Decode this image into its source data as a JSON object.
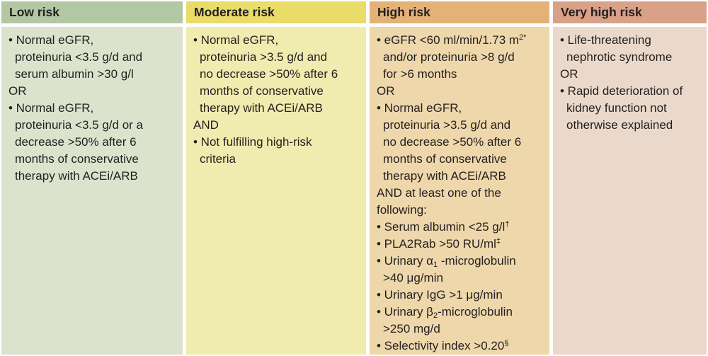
{
  "figure": {
    "background": "#ffffff",
    "text_color": "#231f20",
    "bullet_glyph": "•"
  },
  "table": {
    "columns": [
      {
        "id": "low-risk",
        "header": "Low risk",
        "colors": {
          "header_bg": "#b2c7a3",
          "body_bg": "#dbe3cd"
        },
        "items": [
          {
            "bullet": true,
            "text": "Normal eGFR,\nproteinuria <3.5 g/d and\nserum albumin >30 g/l"
          },
          {
            "bullet": false,
            "text": "OR"
          },
          {
            "bullet": true,
            "text": "Normal eGFR,\nproteinuria <3.5 g/d or a\ndecrease >50% after 6\nmonths of conservative\ntherapy with ACEi/ARB"
          }
        ]
      },
      {
        "id": "moderate-risk",
        "header": "Moderate risk",
        "colors": {
          "header_bg": "#e9dc69",
          "body_bg": "#f0ebae"
        },
        "items": [
          {
            "bullet": true,
            "text": "Normal eGFR,\nproteinuria >3.5 g/d and\nno decrease >50% after 6\nmonths of conservative\ntherapy with ACEi/ARB"
          },
          {
            "bullet": false,
            "text": "AND"
          },
          {
            "bullet": true,
            "text": "Not fulfilling high-risk\ncriteria"
          }
        ]
      },
      {
        "id": "high-risk",
        "header": "High risk",
        "colors": {
          "header_bg": "#e4b277",
          "body_bg": "#eed7ab"
        },
        "items": [
          {
            "bullet": true,
            "text": "eGFR <60 ml/min/1.73 m^{2*}\nand/or proteinuria >8 g/d\nfor >6 months"
          },
          {
            "bullet": false,
            "text": "OR"
          },
          {
            "bullet": true,
            "text": "Normal eGFR,\nproteinuria >3.5 g/d and\nno decrease >50% after 6\nmonths of conservative\ntherapy with ACEi/ARB"
          },
          {
            "bullet": false,
            "text": "AND at least one of the\nfollowing:"
          },
          {
            "bullet": true,
            "text": "Serum albumin <25 g/l^{†}"
          },
          {
            "bullet": true,
            "text": "PLA2Rab >50 RU/ml^{‡}"
          },
          {
            "bullet": true,
            "text": "Urinary α_{1} -microglobulin\n>40 μg/min"
          },
          {
            "bullet": true,
            "text": "Urinary IgG >1 μg/min"
          },
          {
            "bullet": true,
            "text": "Urinary β_{2}-microglobulin\n>250 mg/d"
          },
          {
            "bullet": true,
            "text": "Selectivity index >0.20^{§}"
          }
        ]
      },
      {
        "id": "very-high-risk",
        "header": "Very high risk",
        "colors": {
          "header_bg": "#d8a188",
          "body_bg": "#ead9ca"
        },
        "items": [
          {
            "bullet": true,
            "text": "Life-threatening\nnephrotic syndrome"
          },
          {
            "bullet": false,
            "text": "OR"
          },
          {
            "bullet": true,
            "text": "Rapid deterioration of\nkidney function not\notherwise explained"
          }
        ]
      }
    ]
  }
}
